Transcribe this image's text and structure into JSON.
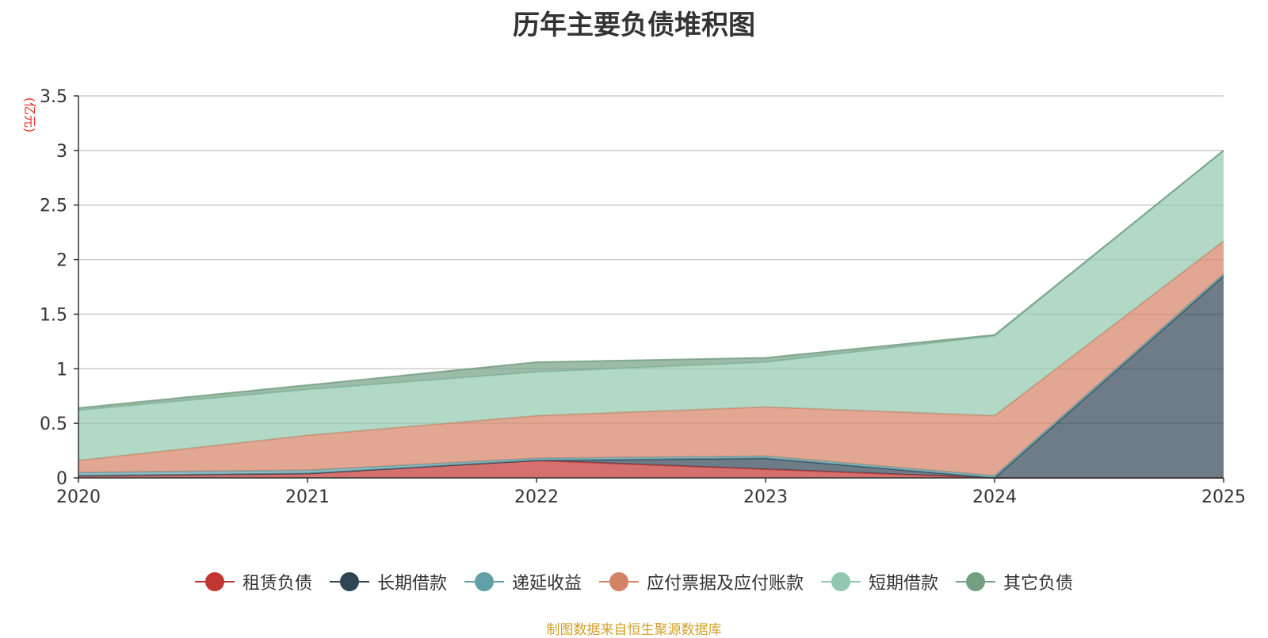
{
  "chart_data": {
    "type": "area",
    "stacked": true,
    "title": "历年主要负债堆积图",
    "ylabel": "(亿元)",
    "xlabel": "",
    "categories": [
      "2020",
      "2021",
      "2022",
      "2023",
      "2024",
      "2025"
    ],
    "yticks": [
      "0",
      "0.5",
      "1",
      "1.5",
      "2",
      "2.5",
      "3",
      "3.5"
    ],
    "ylim": [
      0,
      3.5
    ],
    "grid": true,
    "legend_position": "bottom",
    "series": [
      {
        "name": "租赁负债",
        "color": "#c23531",
        "values": [
          0.02,
          0.04,
          0.16,
          0.08,
          0.0,
          0.0
        ]
      },
      {
        "name": "长期借款",
        "color": "#2f4554",
        "values": [
          0.0,
          0.0,
          0.0,
          0.1,
          0.0,
          1.85
        ]
      },
      {
        "name": "递延收益",
        "color": "#61a0a8",
        "values": [
          0.03,
          0.03,
          0.02,
          0.02,
          0.02,
          0.02
        ]
      },
      {
        "name": "应付票据及应付账款",
        "color": "#d48265",
        "values": [
          0.11,
          0.32,
          0.39,
          0.45,
          0.55,
          0.3
        ]
      },
      {
        "name": "短期借款",
        "color": "#91c7ae",
        "values": [
          0.46,
          0.42,
          0.4,
          0.41,
          0.73,
          0.83
        ]
      },
      {
        "name": "其它负债",
        "color": "#749f83",
        "values": [
          0.02,
          0.04,
          0.09,
          0.04,
          0.01,
          0.0
        ]
      }
    ]
  },
  "source_text": "制图数据来自恒生聚源数据库"
}
